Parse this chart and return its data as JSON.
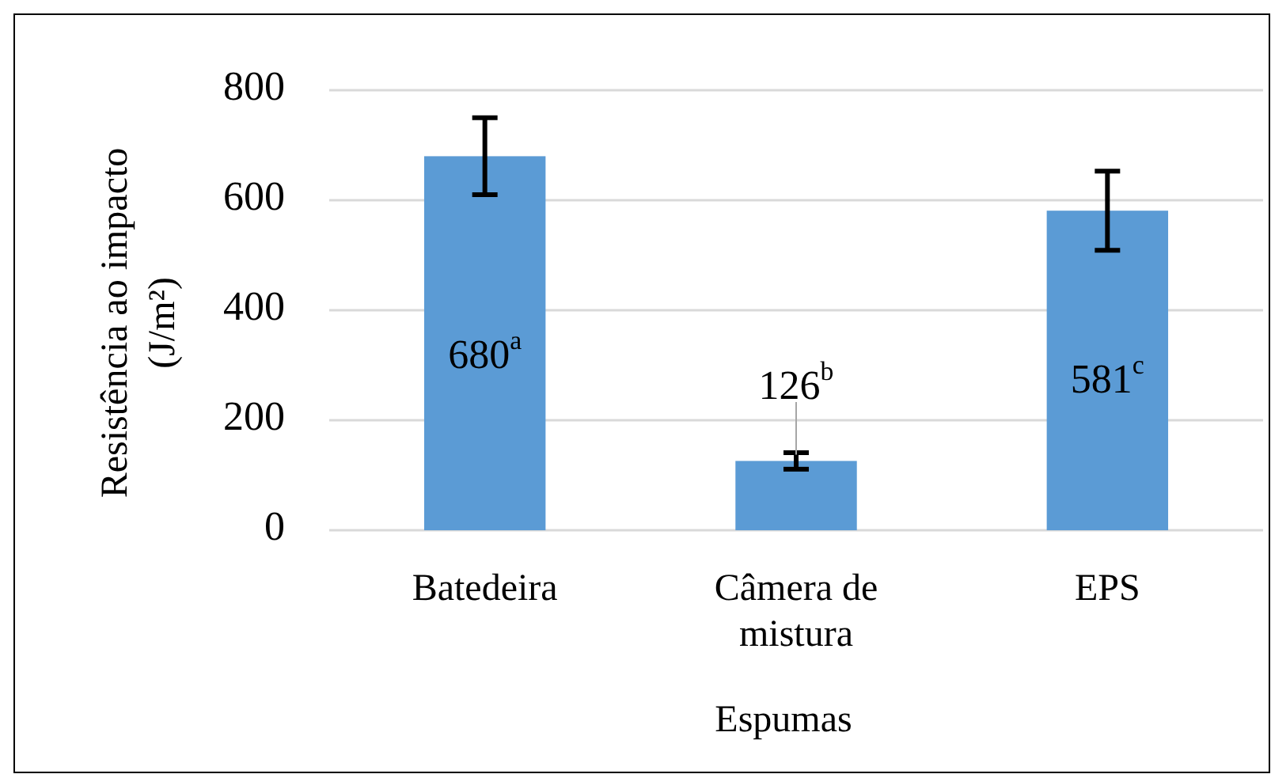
{
  "chart_data": {
    "type": "bar",
    "xlabel": "Espumas",
    "ylabel": "Resistência  ao impacto\n(J/m²)",
    "categories": [
      "Batedeira",
      "Câmera de mistura",
      "EPS"
    ],
    "values": [
      680,
      126,
      581
    ],
    "color": "#5b9bd5",
    "errors": [
      70,
      15,
      72
    ],
    "value_labels": [
      "680$^{a}$",
      "126$^{b}$",
      "581$^{c}$"
    ],
    "ylim": [
      0,
      800
    ],
    "yticks": [
      0,
      200,
      400,
      600,
      800
    ],
    "grid": "y"
  }
}
